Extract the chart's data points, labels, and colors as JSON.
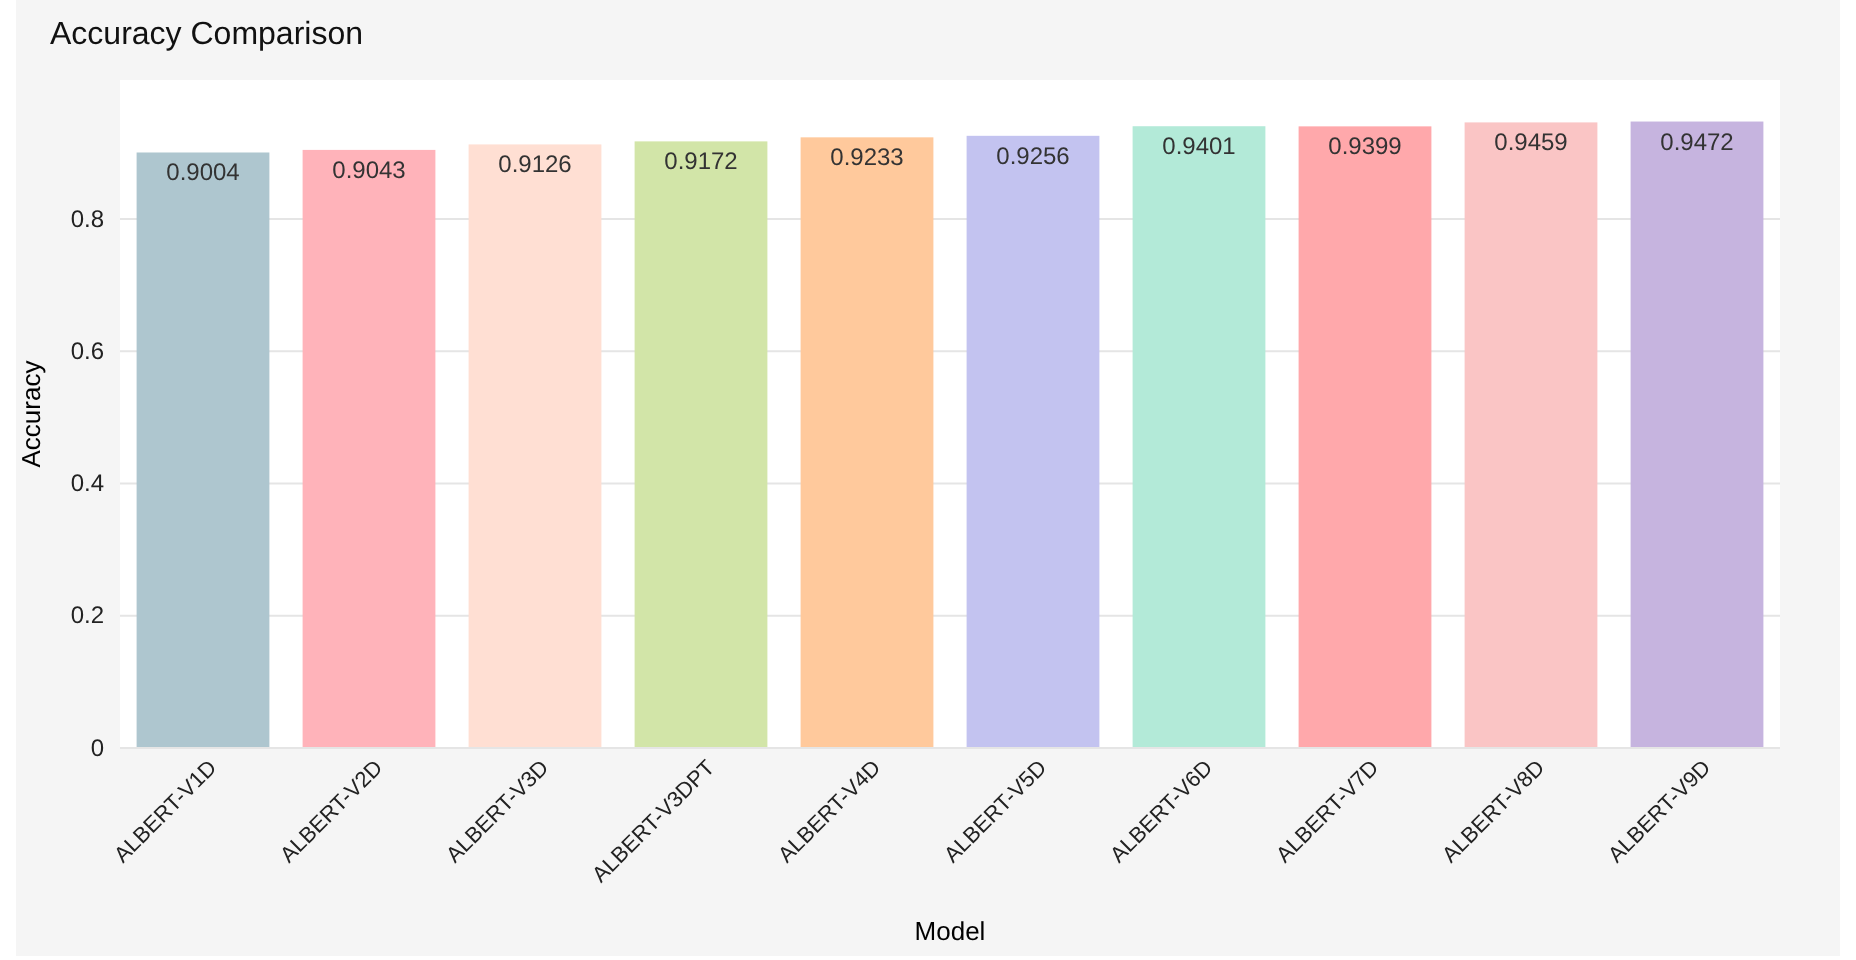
{
  "chart_data": {
    "type": "bar",
    "title": "Accuracy Comparison",
    "xlabel": "Model",
    "ylabel": "Accuracy",
    "categories": [
      "ALBERT-V1D",
      "ALBERT-V2D",
      "ALBERT-V3D",
      "ALBERT-V3DPT",
      "ALBERT-V4D",
      "ALBERT-V5D",
      "ALBERT-V6D",
      "ALBERT-V7D",
      "ALBERT-V8D",
      "ALBERT-V9D"
    ],
    "values": [
      0.9004,
      0.9043,
      0.9126,
      0.9172,
      0.9233,
      0.9256,
      0.9401,
      0.9399,
      0.9459,
      0.9472
    ],
    "colors": [
      "#aec6cf",
      "#ffb3ba",
      "#ffdfd3",
      "#d2e5a8",
      "#ffc99c",
      "#c3c3f0",
      "#b3ead8",
      "#ffa8ab",
      "#fac5c5",
      "#c6b4df"
    ],
    "data_labels": true,
    "ylim": [
      0,
      1.01
    ],
    "yticks": [
      0,
      0.2,
      0.4,
      0.6,
      0.8
    ],
    "grid": "y"
  }
}
